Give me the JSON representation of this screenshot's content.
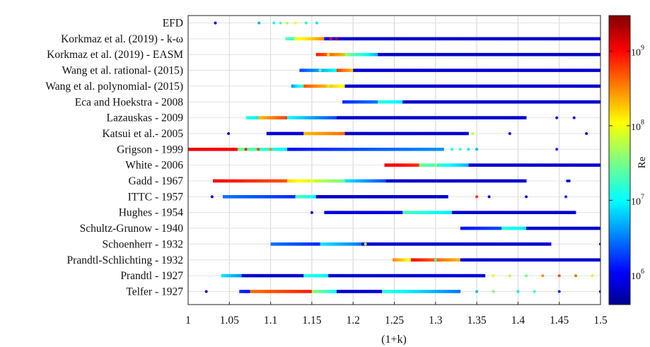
{
  "chart_data": {
    "type": "scatter",
    "xlabel": "(1+k)",
    "xlim": [
      1,
      1.5
    ],
    "xticks": [
      "1",
      "1.05",
      "1.1",
      "1.15",
      "1.2",
      "1.25",
      "1.3",
      "1.35",
      "1.4",
      "1.45",
      "1.5"
    ],
    "grid": true,
    "colorbar": {
      "label": "Re",
      "scale": "log",
      "range": [
        400000,
        3000000000
      ],
      "ticks": [
        {
          "value": 1000000,
          "base": "10",
          "exp": "6"
        },
        {
          "value": 10000000,
          "base": "10",
          "exp": "7"
        },
        {
          "value": 100000000,
          "base": "10",
          "exp": "8"
        },
        {
          "value": 1000000000,
          "base": "10",
          "exp": "9"
        }
      ],
      "colormap": "jet"
    },
    "series": [
      {
        "name": "EFD",
        "segments": [],
        "points": [
          [
            1.033,
            1000000
          ],
          [
            1.086,
            5000000
          ],
          [
            1.104,
            12000000
          ],
          [
            1.112,
            20000000
          ],
          [
            1.12,
            60000000
          ],
          [
            1.13,
            100000000
          ],
          [
            1.143,
            15000000
          ],
          [
            1.156,
            8000000
          ]
        ]
      },
      {
        "name": "Korkmaz et al. (2019) - k-ω",
        "segments": [
          [
            1.118,
            1.128,
            25000000,
            15000000
          ],
          [
            1.128,
            1.165,
            80000000,
            300000000
          ],
          [
            1.165,
            1.2,
            1000000,
            700000
          ],
          [
            1.2,
            1.5,
            700000,
            700000
          ]
        ],
        "points": [
          [
            1.173,
            1000000000
          ],
          [
            1.18,
            2000000000
          ]
        ]
      },
      {
        "name": "Korkmaz et al. (2019) - EASM",
        "segments": [
          [
            1.155,
            1.19,
            800000000,
            200000000
          ],
          [
            1.19,
            1.23,
            40000000,
            5000000
          ],
          [
            1.23,
            1.5,
            700000,
            700000
          ]
        ],
        "points": [
          [
            1.17,
            100000000
          ],
          [
            1.2,
            20000000
          ]
        ]
      },
      {
        "name": "Wang et al. rational- (2015)",
        "segments": [
          [
            1.135,
            1.18,
            2000000,
            10000000
          ],
          [
            1.18,
            1.2,
            600000000,
            200000000
          ],
          [
            1.2,
            1.5,
            700000,
            700000
          ]
        ],
        "points": [
          [
            1.16,
            30000000
          ]
        ]
      },
      {
        "name": "Wang et al. polynomial- (2015)",
        "segments": [
          [
            1.125,
            1.14,
            4000000,
            20000000
          ],
          [
            1.14,
            1.19,
            500000000,
            100000000
          ],
          [
            1.19,
            1.5,
            700000,
            700000
          ]
        ],
        "points": [
          [
            1.17,
            60000000
          ]
        ]
      },
      {
        "name": "Eca and Hoekstra - 2008",
        "segments": [
          [
            1.187,
            1.23,
            1500000,
            3000000
          ],
          [
            1.23,
            1.26,
            15000000,
            8000000
          ],
          [
            1.26,
            1.5,
            700000,
            700000
          ]
        ],
        "points": []
      },
      {
        "name": "Lazauskas - 2009",
        "segments": [
          [
            1.07,
            1.085,
            15000000,
            8000000
          ],
          [
            1.085,
            1.12,
            200000000,
            600000000
          ],
          [
            1.12,
            1.18,
            10000000,
            2000000
          ],
          [
            1.18,
            1.41,
            700000,
            700000
          ]
        ],
        "points": [
          [
            1.115,
            500000000
          ],
          [
            1.447,
            700000
          ],
          [
            1.468,
            700000
          ]
        ]
      },
      {
        "name": "Katsui et al.- 2005",
        "segments": [
          [
            1.095,
            1.14,
            800000,
            700000
          ],
          [
            1.14,
            1.19,
            200000000,
            400000000
          ],
          [
            1.19,
            1.34,
            700000,
            700000
          ]
        ],
        "points": [
          [
            1.049,
            700000
          ],
          [
            1.345,
            60000000
          ],
          [
            1.39,
            700000
          ],
          [
            1.483,
            700000
          ]
        ]
      },
      {
        "name": "Grigson - 1999",
        "segments": [
          [
            1.0,
            1.06,
            1200000000,
            1000000000
          ],
          [
            1.06,
            1.12,
            30000000,
            10000000
          ],
          [
            1.12,
            1.31,
            1200000,
            4000000
          ]
        ],
        "points": [
          [
            1.07,
            800000000
          ],
          [
            1.085,
            600000000
          ],
          [
            1.1,
            300000000
          ],
          [
            1.32,
            10000000
          ],
          [
            1.33,
            20000000
          ],
          [
            1.34,
            8000000
          ],
          [
            1.35,
            5000000
          ],
          [
            1.447,
            1500000
          ]
        ]
      },
      {
        "name": "White - 2006",
        "segments": [
          [
            1.238,
            1.28,
            1200000000,
            700000000
          ],
          [
            1.28,
            1.34,
            30000000,
            5000000
          ],
          [
            1.34,
            1.5,
            700000,
            700000
          ]
        ],
        "points": [
          [
            1.3,
            60000000
          ]
        ]
      },
      {
        "name": "Gadd - 1967",
        "segments": [
          [
            1.03,
            1.12,
            1000000000,
            500000000
          ],
          [
            1.12,
            1.19,
            150000000,
            30000000
          ],
          [
            1.19,
            1.24,
            8000000,
            2000000
          ],
          [
            1.24,
            1.41,
            700000,
            700000
          ]
        ],
        "points": [
          [
            1.065,
            800000000
          ],
          [
            1.15,
            100000000
          ],
          [
            1.46,
            700000
          ],
          [
            1.462,
            700000
          ]
        ]
      },
      {
        "name": "ITTC - 1957",
        "segments": [
          [
            1.042,
            1.13,
            3000000,
            1500000
          ],
          [
            1.13,
            1.155,
            20000000,
            10000000
          ],
          [
            1.155,
            1.315,
            700000,
            700000
          ]
        ],
        "points": [
          [
            1.029,
            800000
          ],
          [
            1.35,
            700000000
          ],
          [
            1.365,
            700000
          ],
          [
            1.41,
            700000
          ],
          [
            1.458,
            1500000
          ]
        ]
      },
      {
        "name": "Hughes - 1954",
        "segments": [
          [
            1.165,
            1.26,
            800000,
            900000
          ],
          [
            1.26,
            1.32,
            20000000,
            8000000
          ],
          [
            1.32,
            1.47,
            700000,
            700000
          ]
        ],
        "points": [
          [
            1.15,
            700000
          ]
        ]
      },
      {
        "name": "Schultz-Grunow - 1940",
        "segments": [
          [
            1.33,
            1.38,
            1200000,
            2000000
          ],
          [
            1.38,
            1.41,
            15000000,
            8000000
          ],
          [
            1.41,
            1.5,
            700000,
            700000
          ]
        ],
        "points": []
      },
      {
        "name": "Schoenherr - 1932",
        "segments": [
          [
            1.1,
            1.16,
            3000000,
            1500000
          ],
          [
            1.16,
            1.21,
            8000000,
            3000000
          ],
          [
            1.21,
            1.44,
            700000,
            700000
          ]
        ],
        "points": [
          [
            1.215,
            60000000
          ],
          [
            1.5,
            700000
          ]
        ]
      },
      {
        "name": "Prandtl-Schlichting - 1932",
        "segments": [
          [
            1.248,
            1.27,
            300000000,
            100000000
          ],
          [
            1.27,
            1.33,
            1000000000,
            200000000
          ],
          [
            1.33,
            1.5,
            700000,
            700000
          ]
        ],
        "points": [
          [
            1.3,
            20000000
          ]
        ]
      },
      {
        "name": "Prandtl - 1927",
        "segments": [
          [
            1.04,
            1.065,
            8000000,
            4000000
          ],
          [
            1.065,
            1.14,
            700000,
            700000
          ],
          [
            1.14,
            1.17,
            15000000,
            8000000
          ],
          [
            1.17,
            1.36,
            700000,
            800000
          ]
        ],
        "points": [
          [
            1.37,
            100000000
          ],
          [
            1.39,
            60000000
          ],
          [
            1.41,
            30000000
          ],
          [
            1.43,
            300000000
          ],
          [
            1.45,
            500000000
          ],
          [
            1.47,
            400000000
          ],
          [
            1.49,
            80000000
          ]
        ]
      },
      {
        "name": "Telfer - 1927",
        "segments": [
          [
            1.062,
            1.075,
            1500000,
            1200000
          ],
          [
            1.075,
            1.15,
            400000000,
            800000000
          ],
          [
            1.15,
            1.18,
            40000000,
            10000000
          ],
          [
            1.18,
            1.235,
            700000,
            700000
          ],
          [
            1.235,
            1.33,
            15000000,
            3000000
          ]
        ],
        "points": [
          [
            1.022,
            800000
          ],
          [
            1.35,
            5000000
          ],
          [
            1.37,
            30000000
          ],
          [
            1.4,
            8000000
          ],
          [
            1.42,
            20000000
          ],
          [
            1.45,
            1500000
          ],
          [
            1.5,
            700000
          ]
        ]
      }
    ]
  }
}
